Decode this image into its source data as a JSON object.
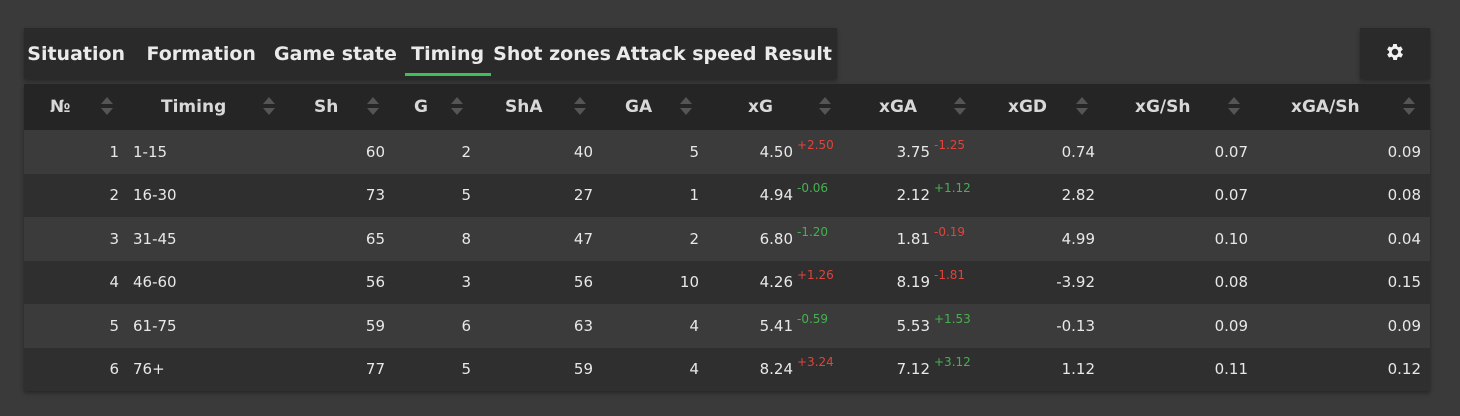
{
  "tabs": [
    {
      "label": "Situation"
    },
    {
      "label": "Formation"
    },
    {
      "label": "Game state"
    },
    {
      "label": "Timing",
      "active": true
    },
    {
      "label": "Shot zones"
    },
    {
      "label": "Attack speed"
    },
    {
      "label": "Result"
    }
  ],
  "columns": [
    "№",
    "Timing",
    "Sh",
    "G",
    "ShA",
    "GA",
    "xG",
    "xGA",
    "xGD",
    "xG/Sh",
    "xGA/Sh"
  ],
  "colors": {
    "positive_delta": "#e0443a",
    "negative_delta": "#45b14f",
    "active_tab": "#3fbf5a"
  },
  "rows": [
    {
      "n": "1",
      "timing": "1-15",
      "sh": "60",
      "g": "2",
      "sha": "40",
      "ga": "5",
      "xg": "4.50",
      "xg_d": "+2.50",
      "xga": "3.75",
      "xga_d": "-1.25",
      "xgd": "0.74",
      "xgsh": "0.07",
      "xgash": "0.09"
    },
    {
      "n": "2",
      "timing": "16-30",
      "sh": "73",
      "g": "5",
      "sha": "27",
      "ga": "1",
      "xg": "4.94",
      "xg_d": "-0.06",
      "xga": "2.12",
      "xga_d": "+1.12",
      "xgd": "2.82",
      "xgsh": "0.07",
      "xgash": "0.08"
    },
    {
      "n": "3",
      "timing": "31-45",
      "sh": "65",
      "g": "8",
      "sha": "47",
      "ga": "2",
      "xg": "6.80",
      "xg_d": "-1.20",
      "xga": "1.81",
      "xga_d": "-0.19",
      "xgd": "4.99",
      "xgsh": "0.10",
      "xgash": "0.04"
    },
    {
      "n": "4",
      "timing": "46-60",
      "sh": "56",
      "g": "3",
      "sha": "56",
      "ga": "10",
      "xg": "4.26",
      "xg_d": "+1.26",
      "xga": "8.19",
      "xga_d": "-1.81",
      "xgd": "-3.92",
      "xgsh": "0.08",
      "xgash": "0.15"
    },
    {
      "n": "5",
      "timing": "61-75",
      "sh": "59",
      "g": "6",
      "sha": "63",
      "ga": "4",
      "xg": "5.41",
      "xg_d": "-0.59",
      "xga": "5.53",
      "xga_d": "+1.53",
      "xgd": "-0.13",
      "xgsh": "0.09",
      "xgash": "0.09"
    },
    {
      "n": "6",
      "timing": "76+",
      "sh": "77",
      "g": "5",
      "sha": "59",
      "ga": "4",
      "xg": "8.24",
      "xg_d": "+3.24",
      "xga": "7.12",
      "xga_d": "+3.12",
      "xgd": "1.12",
      "xgsh": "0.11",
      "xgash": "0.12"
    }
  ],
  "delta_colors": {
    "xg": [
      "pos",
      "neg",
      "neg",
      "pos",
      "neg",
      "pos"
    ],
    "xga": [
      "pos",
      "neg",
      "pos",
      "pos",
      "neg",
      "neg"
    ]
  }
}
